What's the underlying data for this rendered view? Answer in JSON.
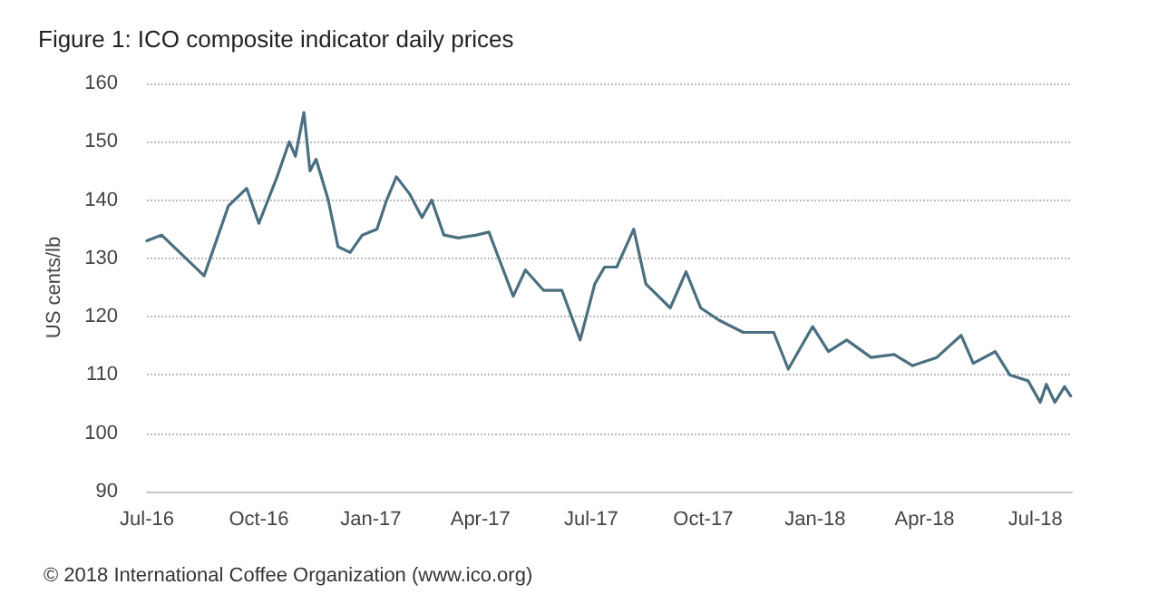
{
  "chart_data": {
    "type": "line",
    "title": "Figure 1: ICO composite indicator daily prices",
    "ylabel": "US cents/lb",
    "annotations": [
      "© 2018 International Coffee Organization (www.ico.org)"
    ],
    "x": [
      "2016-07-01",
      "2016-07-13",
      "2016-07-28",
      "2016-08-17",
      "2016-09-06",
      "2016-09-21",
      "2016-10-01",
      "2016-10-16",
      "2016-10-26",
      "2016-10-31",
      "2016-11-07",
      "2016-11-12",
      "2016-11-17",
      "2016-11-27",
      "2016-12-05",
      "2016-12-15",
      "2016-12-25",
      "2017-01-06",
      "2017-01-14",
      "2017-01-22",
      "2017-02-02",
      "2017-02-12",
      "2017-02-20",
      "2017-03-02",
      "2017-03-14",
      "2017-03-29",
      "2017-04-08",
      "2017-04-18",
      "2017-04-28",
      "2017-05-08",
      "2017-05-23",
      "2017-06-07",
      "2017-06-22",
      "2017-07-04",
      "2017-07-12",
      "2017-07-22",
      "2017-08-05",
      "2017-08-15",
      "2017-09-04",
      "2017-09-17",
      "2017-09-29",
      "2017-10-14",
      "2017-11-03",
      "2017-11-28",
      "2017-12-10",
      "2017-12-30",
      "2018-01-12",
      "2018-01-27",
      "2018-02-16",
      "2018-03-07",
      "2018-03-22",
      "2018-04-11",
      "2018-05-01",
      "2018-05-11",
      "2018-05-29",
      "2018-06-10",
      "2018-06-25",
      "2018-07-05",
      "2018-07-10",
      "2018-07-17",
      "2018-07-25",
      "2018-07-30"
    ],
    "series": [
      {
        "color": "#4a6f80",
        "values": [
          133,
          134,
          131,
          127,
          139,
          142,
          136,
          144,
          150,
          147.5,
          155,
          145,
          147,
          140,
          132,
          131,
          134,
          135,
          140,
          144,
          141,
          137,
          140,
          134,
          133.5,
          134,
          134.5,
          129,
          123.5,
          128,
          124.5,
          124.5,
          116,
          125.6,
          128.5,
          128.5,
          135,
          125.6,
          121.5,
          127.7,
          121.5,
          119.4,
          117.3,
          117.3,
          111,
          118.3,
          114,
          116,
          113,
          113.5,
          111.6,
          113,
          116.8,
          112,
          114,
          110,
          109,
          105.3,
          108.4,
          105.3,
          108,
          106.4
        ]
      }
    ],
    "xlim": [
      "2016-07-01",
      "2018-07-31"
    ],
    "xticks": [
      {
        "value": "2016-07-01",
        "label": "Jul-16"
      },
      {
        "value": "2016-10-01",
        "label": "Oct-16"
      },
      {
        "value": "2017-01-01",
        "label": "Jan-17"
      },
      {
        "value": "2017-04-01",
        "label": "Apr-17"
      },
      {
        "value": "2017-07-01",
        "label": "Jul-17"
      },
      {
        "value": "2017-10-01",
        "label": "Oct-17"
      },
      {
        "value": "2018-01-01",
        "label": "Jan-18"
      },
      {
        "value": "2018-04-01",
        "label": "Apr-18"
      },
      {
        "value": "2018-07-01",
        "label": "Jul-18"
      }
    ],
    "ylim": [
      90,
      160
    ],
    "yticks": [
      90,
      100,
      110,
      120,
      130,
      140,
      150,
      160
    ],
    "grid": "y",
    "marker": "none",
    "line_style": "solid"
  }
}
